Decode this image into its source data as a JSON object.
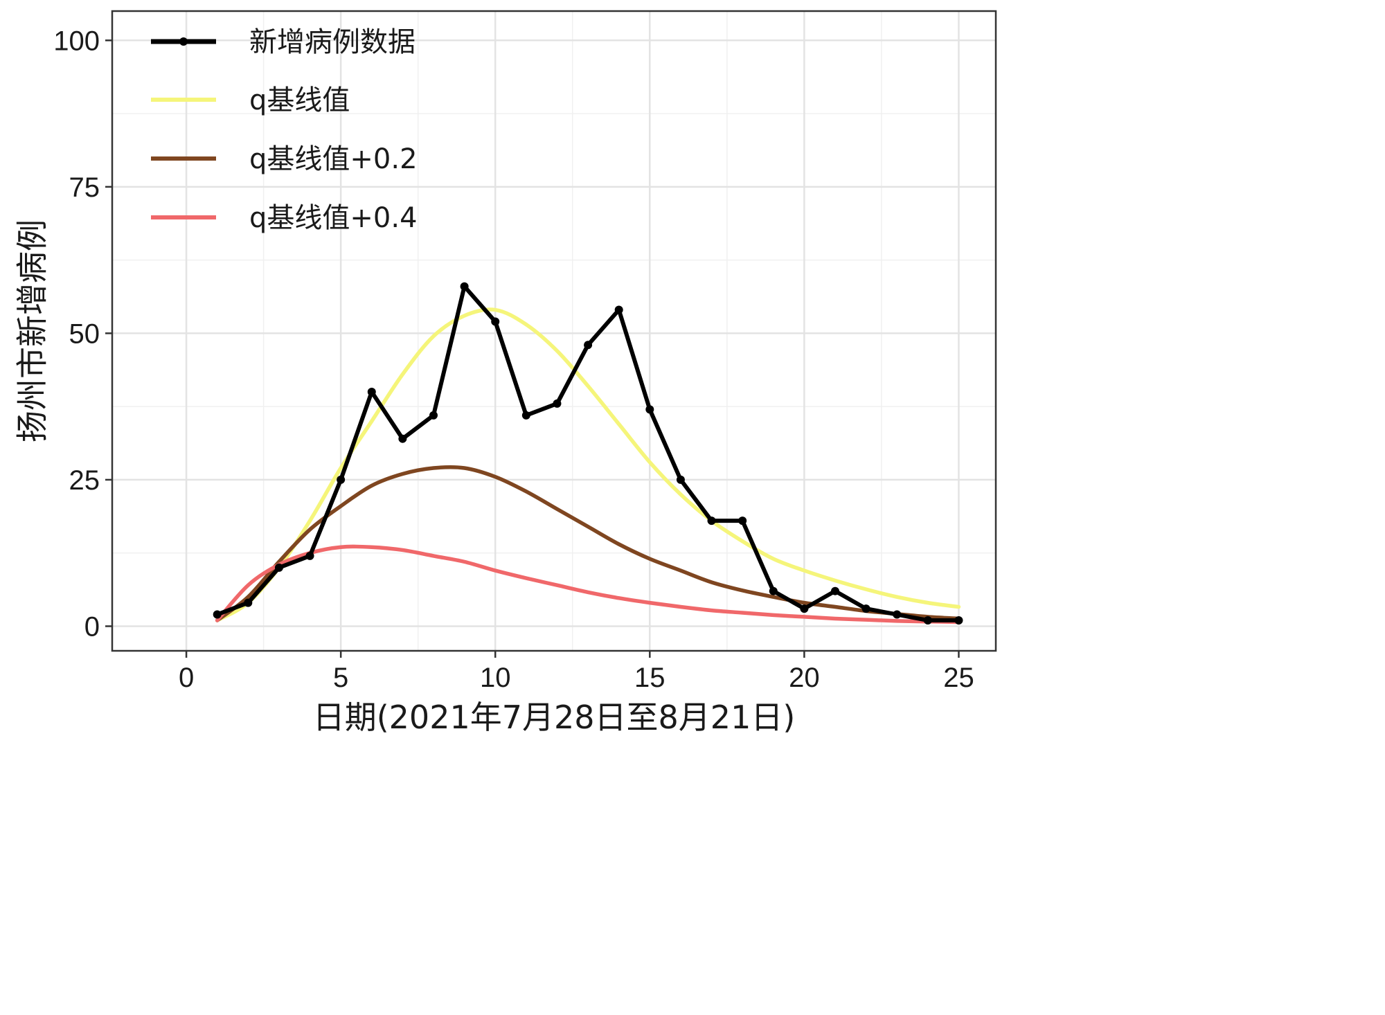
{
  "chart_data": {
    "type": "line",
    "xlabel": "日期(2021年7月28日至8月21日)",
    "ylabel": "扬州市新增病例",
    "xlim": [
      -2.4,
      26.2
    ],
    "ylim": [
      -4.2,
      105
    ],
    "xticks": [
      0,
      5,
      10,
      15,
      20,
      25
    ],
    "yticks": [
      0,
      25,
      50,
      75,
      100
    ],
    "grid": true,
    "legend_position": "top-left",
    "series": [
      {
        "name": "新增病例数据",
        "color": "#000000",
        "markers": true,
        "x": [
          1,
          2,
          3,
          4,
          5,
          6,
          7,
          8,
          9,
          10,
          11,
          12,
          13,
          14,
          15,
          16,
          17,
          18,
          19,
          20,
          21,
          22,
          23,
          24,
          25
        ],
        "y": [
          2,
          4,
          10,
          12,
          25,
          40,
          32,
          36,
          58,
          52,
          36,
          38,
          48,
          54,
          37,
          25,
          18,
          18,
          6,
          3,
          6,
          3,
          2,
          1,
          1
        ]
      },
      {
        "name": "q基线值",
        "color": "#f5f57a",
        "x": [
          1,
          2,
          3,
          4,
          5,
          6,
          7,
          8,
          9,
          10,
          11,
          12,
          13,
          14,
          15,
          16,
          17,
          18,
          19,
          20,
          21,
          22,
          23,
          24,
          25
        ],
        "y": [
          1,
          4,
          10,
          18,
          27,
          35,
          43,
          49.5,
          53,
          54,
          51.5,
          47,
          41,
          34.5,
          28,
          22.5,
          18,
          14.5,
          11.5,
          9.5,
          7.8,
          6.3,
          5,
          4,
          3.3
        ]
      },
      {
        "name": "q基线值+0.2",
        "color": "#7f4620",
        "x": [
          1,
          2,
          3,
          4,
          5,
          6,
          7,
          8,
          9,
          10,
          11,
          12,
          13,
          14,
          15,
          16,
          17,
          18,
          19,
          20,
          21,
          22,
          23,
          24,
          25
        ],
        "y": [
          1,
          5,
          11,
          16.5,
          20.5,
          24,
          26,
          27,
          27,
          25.5,
          23,
          20,
          17,
          14,
          11.5,
          9.5,
          7.5,
          6.1,
          5,
          4,
          3.3,
          2.6,
          2.1,
          1.6,
          1.3
        ]
      },
      {
        "name": "q基线值+0.4",
        "color": "#f0686a",
        "x": [
          1,
          2,
          3,
          4,
          5,
          6,
          7,
          8,
          9,
          10,
          11,
          12,
          13,
          14,
          15,
          16,
          17,
          18,
          19,
          20,
          21,
          22,
          23,
          24,
          25
        ],
        "y": [
          1,
          7,
          10.5,
          12.5,
          13.5,
          13.5,
          13,
          12,
          11,
          9.5,
          8.2,
          7,
          5.8,
          4.8,
          4,
          3.3,
          2.7,
          2.3,
          1.9,
          1.6,
          1.3,
          1.1,
          0.9,
          0.8,
          0.7
        ]
      }
    ]
  }
}
